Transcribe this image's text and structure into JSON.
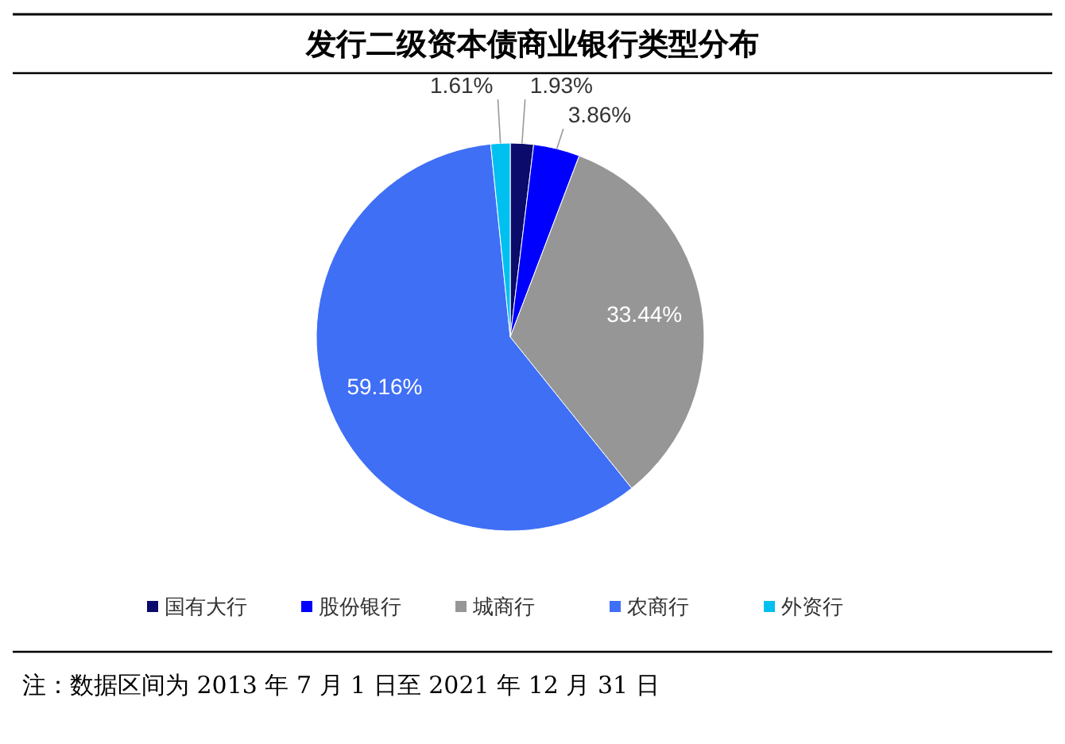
{
  "chart_data": {
    "type": "pie",
    "title": "发行二级资本债商业银行类型分布",
    "categories": [
      "国有大行",
      "股份银行",
      "城商行",
      "农商行",
      "外资行"
    ],
    "values": [
      1.93,
      3.86,
      33.44,
      59.16,
      1.61
    ],
    "colors": [
      "#0b0b6b",
      "#0000ff",
      "#969696",
      "#3f6ff5",
      "#00c0f0"
    ],
    "value_labels": [
      "1.93%",
      "3.86%",
      "33.44%",
      "59.16%",
      "1.61%"
    ],
    "legend": "bottom",
    "annotations": [
      "注：数据区间为 2013 年 7 月 1 日至 2021 年 12 月 31 日"
    ]
  }
}
